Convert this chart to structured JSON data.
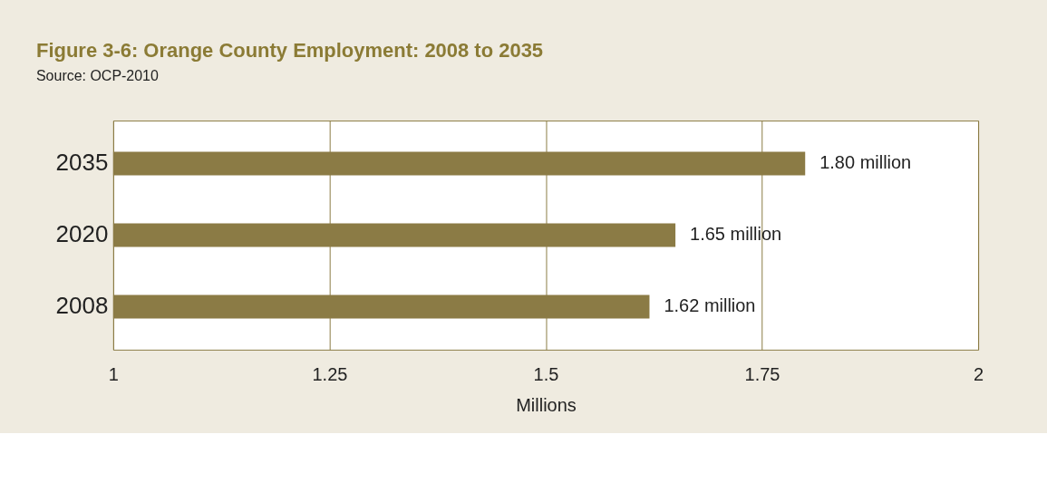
{
  "chart_data": {
    "type": "bar",
    "orientation": "horizontal",
    "title": "Figure 3-6: Orange County Employment: 2008 to 2035",
    "subtitle": "Source: OCP-2010",
    "xlabel": "Millions",
    "categories": [
      "2035",
      "2020",
      "2008"
    ],
    "values": [
      1.8,
      1.65,
      1.62
    ],
    "color": "#8b7b45",
    "value_labels": [
      "1.80 million",
      "1.65 million",
      "1.62 million"
    ],
    "xlim": [
      1,
      2
    ],
    "xticks": [
      1,
      1.25,
      1.5,
      1.75,
      2
    ],
    "grid": "x"
  }
}
